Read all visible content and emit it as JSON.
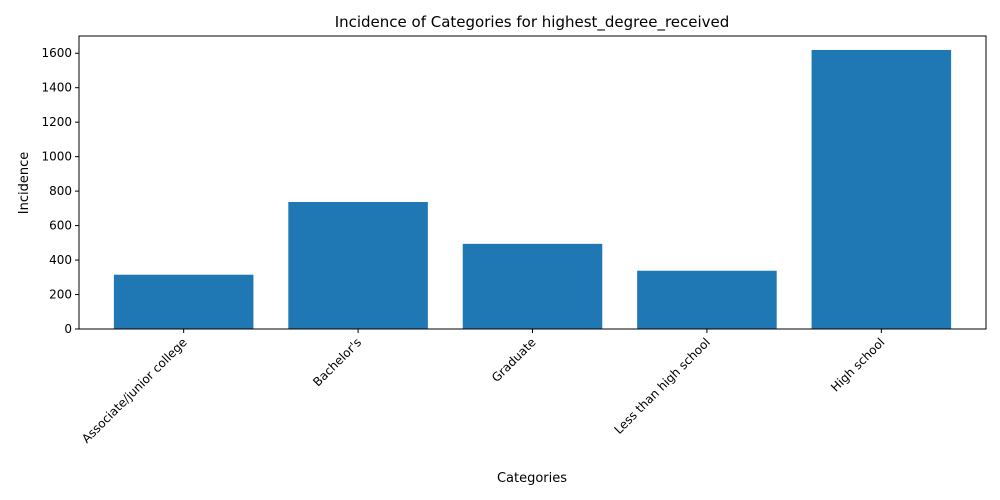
{
  "chart_data": {
    "type": "bar",
    "title": "Incidence of Categories for highest_degree_received",
    "xlabel": "Categories",
    "ylabel": "Incidence",
    "categories": [
      "Associate/junior college",
      "Bachelor's",
      "Graduate",
      "Less than high school",
      "High school"
    ],
    "values": [
      315,
      737,
      494,
      338,
      1619
    ],
    "ylim": [
      0,
      1700
    ],
    "yticks": [
      0,
      200,
      400,
      600,
      800,
      1000,
      1200,
      1400,
      1600
    ],
    "bar_color": "#1f77b4",
    "grid": false,
    "legend": "none"
  }
}
